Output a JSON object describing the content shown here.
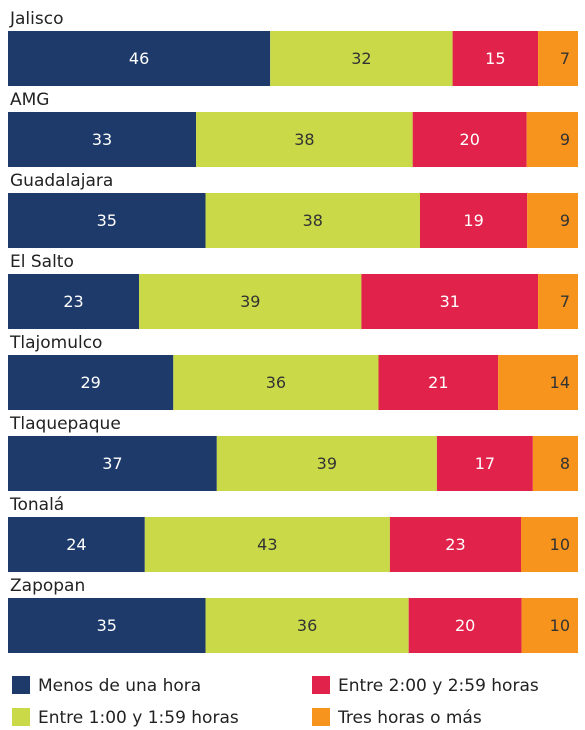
{
  "chart_data": {
    "type": "stacked-bar-horizontal",
    "categories": [
      "Jalisco",
      "AMG",
      "Guadalajara",
      "El Salto",
      "Tlajomulco",
      "Tlaquepaque",
      "Tonalá",
      "Zapopan"
    ],
    "series": [
      {
        "name": "Menos de una hora",
        "color": "#1d3a6b",
        "values": [
          46,
          33,
          35,
          23,
          29,
          37,
          24,
          35
        ]
      },
      {
        "name": "Entre 1:00 y 1:59 horas",
        "color": "#c9d948",
        "values": [
          32,
          38,
          38,
          39,
          36,
          39,
          43,
          36
        ]
      },
      {
        "name": "Entre 2:00 y 2:59 horas",
        "color": "#e1224a",
        "values": [
          15,
          20,
          19,
          31,
          21,
          17,
          23,
          20
        ]
      },
      {
        "name": "Tres horas o más",
        "color": "#f7941d",
        "values": [
          7,
          9,
          9,
          7,
          14,
          8,
          10,
          10
        ]
      }
    ]
  }
}
